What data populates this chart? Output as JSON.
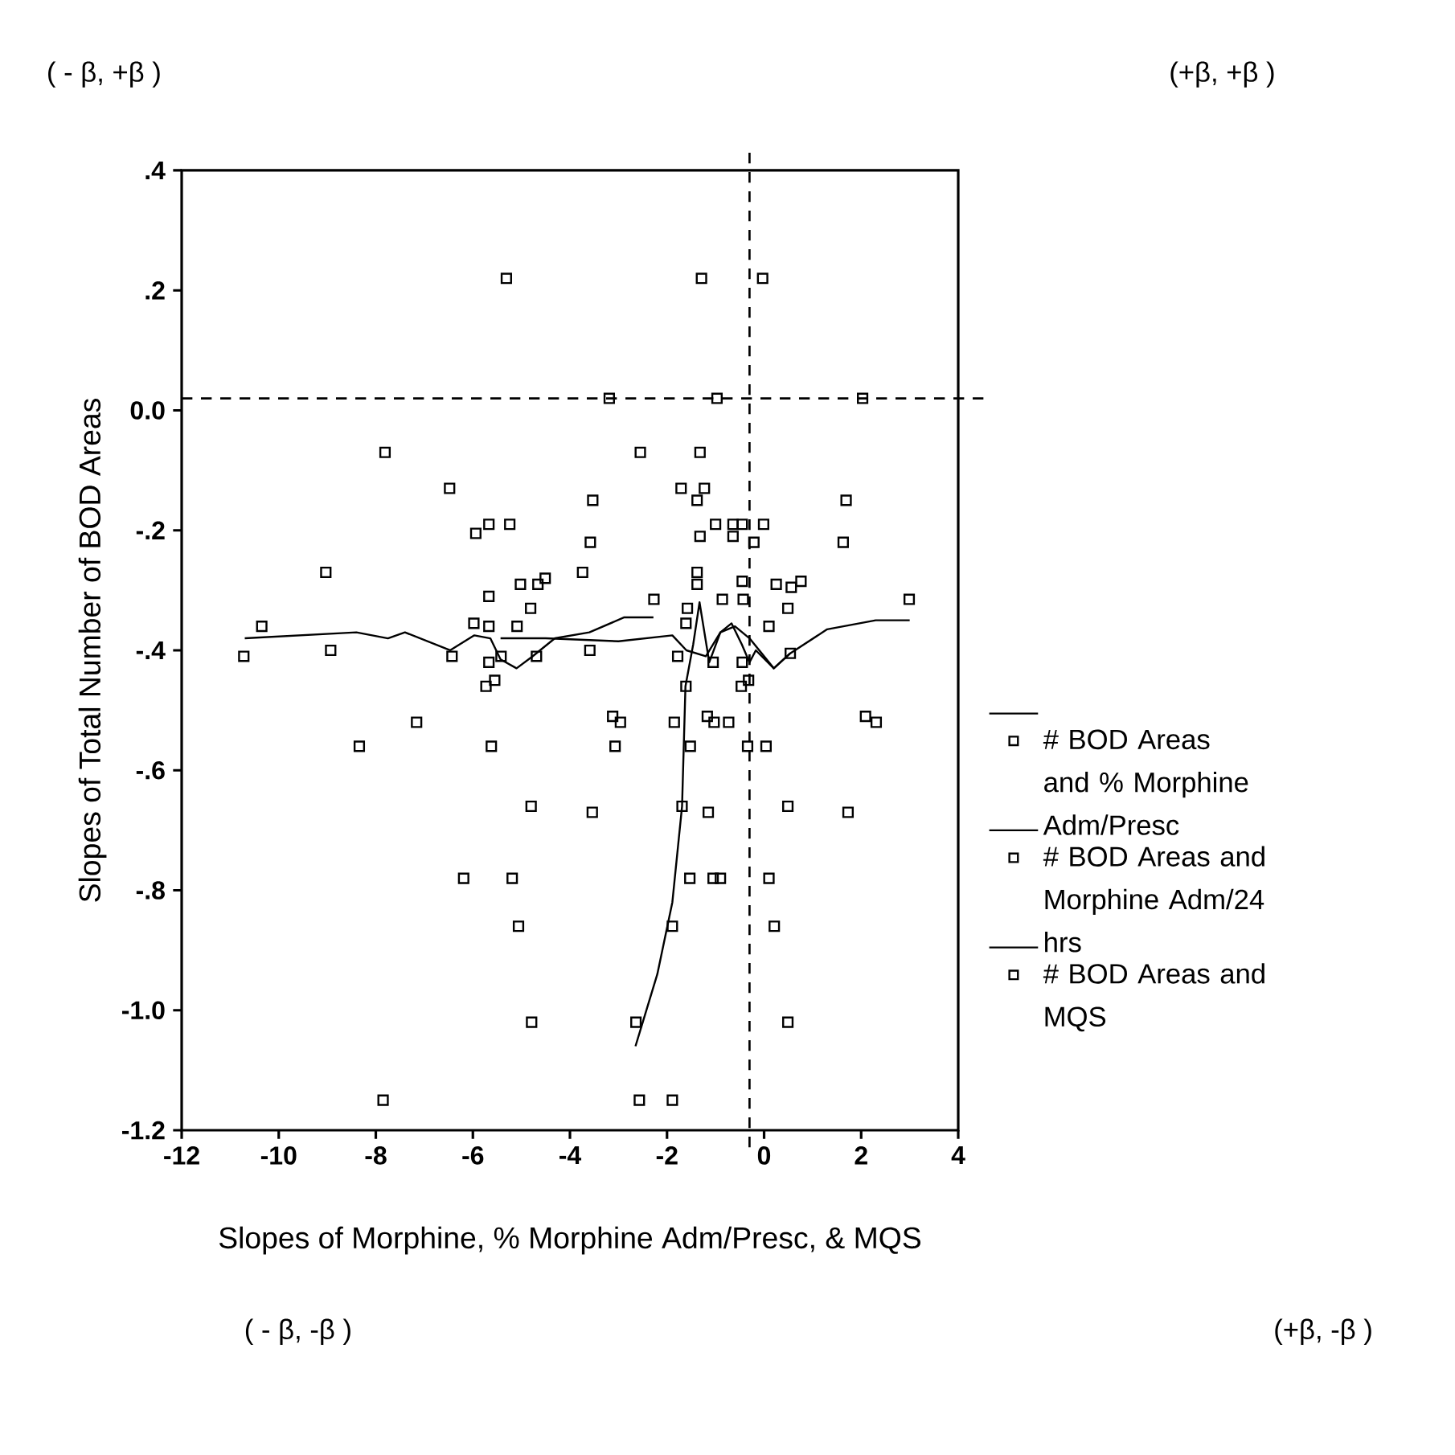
{
  "chart_data": {
    "type": "scatter",
    "xlabel": "Slopes of Morphine, % Morphine Adm/Presc, & MQS",
    "ylabel": "Slopes of Total Number of BOD Areas",
    "xlim": [
      -12,
      4
    ],
    "ylim": [
      -1.2,
      0.4
    ],
    "xticks": [
      -12,
      -10,
      -8,
      -6,
      -4,
      -2,
      0,
      2,
      4
    ],
    "yticks": [
      {
        "value": 0.4,
        "label": ".4"
      },
      {
        "value": 0.2,
        "label": ".2"
      },
      {
        "value": 0,
        "label": "0.0"
      },
      {
        "value": -0.2,
        "label": "-.2"
      },
      {
        "value": -0.4,
        "label": "-.4"
      },
      {
        "value": -0.6,
        "label": "-.6"
      },
      {
        "value": -0.8,
        "label": "-.8"
      },
      {
        "value": -1.0,
        "label": "-1.0"
      },
      {
        "value": -1.2,
        "label": "-1.2"
      }
    ],
    "grid": false,
    "legend": "right",
    "marker": "square",
    "line_style": "solid",
    "ref_lines": [
      {
        "axis": "y",
        "value": 0.02,
        "line_style": "dashed"
      },
      {
        "axis": "x",
        "value": -0.3,
        "line_style": "dashed"
      }
    ],
    "annotations": [
      "( - β, +β )",
      "(+β, +β )",
      "( - β, -β )",
      "(+β, -β )"
    ],
    "series": [
      {
        "name": "# BOD Areas and % Morphine Adm/Presc",
        "color": "#000000",
        "x": [
          -2.55,
          -2.27,
          -1.71,
          -1.58,
          -1.61,
          -1.78,
          -1.61,
          -2.64,
          -2.57,
          -1.89,
          -1.89,
          -1.85,
          -1.52,
          -1.69,
          -1.53,
          -2.96,
          -3.12,
          -3.07,
          -1.32,
          -1.38,
          -1.38,
          -1.23,
          -1.32
        ],
        "values": [
          -0.07,
          -0.315,
          -0.13,
          -0.33,
          -0.355,
          -0.41,
          -0.46,
          -1.02,
          -1.15,
          -1.15,
          -0.86,
          -0.52,
          -0.56,
          -0.66,
          -0.78,
          -0.52,
          -0.51,
          -0.56,
          -0.07,
          -0.15,
          -0.27,
          -0.13,
          -0.21
        ]
      },
      {
        "name": "# BOD Areas and Morphine Adm/24 hrs",
        "color": "#000000",
        "x": [
          -5.31,
          -7.81,
          -6.48,
          -5.94,
          -5.67,
          -5.24,
          -9.03,
          -5.02,
          -4.66,
          -4.51,
          -5.67,
          -4.81,
          -10.35,
          -5.98,
          -5.67,
          -5.09,
          -10.72,
          -8.93,
          -6.43,
          -5.67,
          -5.42,
          -4.69,
          -5.73,
          -5.55,
          -7.16,
          -8.34,
          -5.62,
          -4.8,
          -6.19,
          -5.19,
          -5.06,
          -4.79,
          -7.85,
          -3.19,
          -3.53,
          -3.58,
          -3.74,
          -3.59,
          -3.54
        ],
        "values": [
          0.22,
          -0.07,
          -0.13,
          -0.205,
          -0.19,
          -0.19,
          -0.27,
          -0.29,
          -0.29,
          -0.28,
          -0.31,
          -0.33,
          -0.36,
          -0.355,
          -0.36,
          -0.36,
          -0.41,
          -0.4,
          -0.41,
          -0.42,
          -0.41,
          -0.41,
          -0.46,
          -0.45,
          -0.52,
          -0.56,
          -0.56,
          -0.66,
          -0.78,
          -0.78,
          -0.86,
          -1.02,
          -1.15,
          0.02,
          -0.15,
          -0.22,
          -0.27,
          -0.4,
          -0.67
        ]
      },
      {
        "name": "# BOD Areas and MQS",
        "color": "#000000",
        "x": [
          -1.29,
          -0.03,
          -0.97,
          2.03,
          1.69,
          1.63,
          -1.0,
          -0.64,
          -0.45,
          -0.64,
          -0.01,
          -0.21,
          -1.38,
          -0.45,
          0.25,
          0.56,
          0.76,
          -0.86,
          -0.43,
          2.99,
          0.49,
          0.1,
          -1.05,
          -0.45,
          0.54,
          -0.47,
          -0.32,
          -1.17,
          -1.03,
          -0.73,
          2.09,
          2.31,
          -0.34,
          0.04,
          -1.15,
          0.49,
          1.73,
          -1.05,
          -0.9,
          0.1,
          0.21,
          0.49
        ],
        "values": [
          0.22,
          0.22,
          0.02,
          0.02,
          -0.15,
          -0.22,
          -0.19,
          -0.19,
          -0.19,
          -0.21,
          -0.19,
          -0.22,
          -0.29,
          -0.285,
          -0.29,
          -0.295,
          -0.285,
          -0.315,
          -0.315,
          -0.315,
          -0.33,
          -0.36,
          -0.42,
          -0.42,
          -0.405,
          -0.46,
          -0.45,
          -0.51,
          -0.52,
          -0.52,
          -0.51,
          -0.52,
          -0.56,
          -0.56,
          -0.67,
          -0.66,
          -0.67,
          -0.78,
          -0.78,
          -0.78,
          -0.86,
          -1.02
        ]
      },
      {
        "type": "line",
        "marker": "none",
        "color": "#000000",
        "x": [
          -2.65,
          -2.2,
          -1.89,
          -1.69,
          -1.62,
          -1.46,
          -1.33,
          -1.13,
          -0.9,
          -0.67,
          -0.46,
          -0.3,
          -0.17,
          0.2,
          0.54
        ],
        "values": [
          -1.06,
          -0.94,
          -0.82,
          -0.66,
          -0.46,
          -0.39,
          -0.32,
          -0.42,
          -0.37,
          -0.355,
          -0.39,
          -0.42,
          -0.4,
          -0.43,
          -0.405
        ]
      },
      {
        "type": "line",
        "marker": "none",
        "color": "#000000",
        "x": [
          -10.7,
          -8.4,
          -7.75,
          -7.4,
          -6.47,
          -5.97,
          -5.64,
          -5.43,
          -5.1,
          -4.77,
          -4.31,
          -3.6,
          -2.88,
          -2.28
        ],
        "values": [
          -0.38,
          -0.37,
          -0.38,
          -0.37,
          -0.4,
          -0.375,
          -0.38,
          -0.415,
          -0.43,
          -0.41,
          -0.38,
          -0.37,
          -0.345,
          -0.345
        ]
      },
      {
        "type": "line",
        "marker": "none",
        "color": "#000000",
        "x": [
          -5.43,
          -4.5,
          -3.0,
          -1.89,
          -1.6,
          -1.2,
          -0.9,
          -0.6,
          -0.3,
          0.2,
          0.54,
          1.3,
          2.3,
          3.0
        ],
        "values": [
          -0.38,
          -0.38,
          -0.385,
          -0.375,
          -0.4,
          -0.41,
          -0.37,
          -0.36,
          -0.38,
          -0.43,
          -0.405,
          -0.365,
          -0.35,
          -0.35
        ]
      }
    ]
  }
}
